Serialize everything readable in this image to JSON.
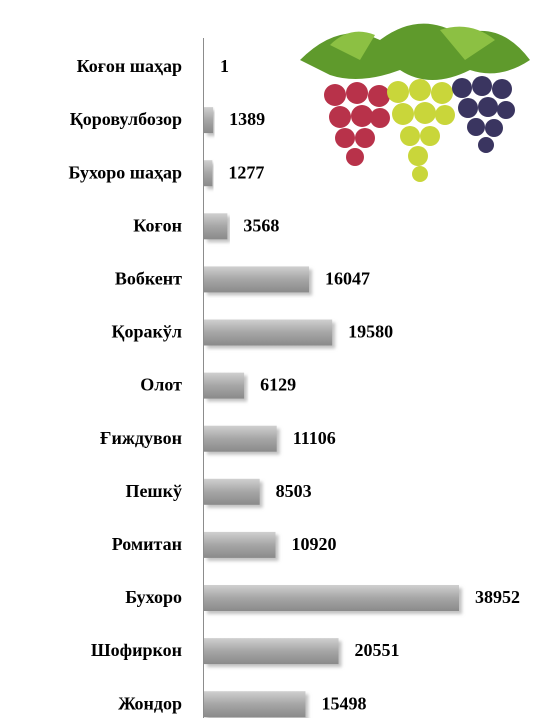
{
  "chart_data": {
    "type": "bar",
    "orientation": "horizontal",
    "categories": [
      "Коғон шаҳар",
      "Қоровулбозор",
      "Бухоро шаҳар",
      "Коғон",
      "Вобкент",
      "Қоракўл",
      "Олот",
      "Ғиждувон",
      "Пешкў",
      "Ромитан",
      "Бухоро",
      "Шофиркон",
      "Жондор"
    ],
    "values": [
      1,
      1389,
      1277,
      3568,
      16047,
      19580,
      6129,
      11106,
      8503,
      10920,
      38952,
      20551,
      15498
    ],
    "color": "#a6a6a6"
  }
}
